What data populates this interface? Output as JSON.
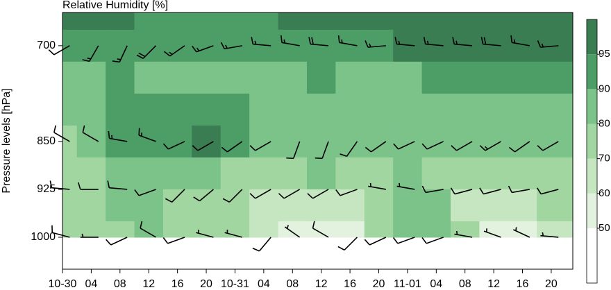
{
  "chart_data": {
    "type": "contour",
    "title": "Relative Humidity [%]",
    "y_label": "Pressure levels [hPa]",
    "xlim": [
      0,
      71
    ],
    "xticks": [
      {
        "value": 0,
        "label": "10-30"
      },
      {
        "value": 4,
        "label": "04"
      },
      {
        "value": 8,
        "label": "08"
      },
      12,
      16,
      20,
      {
        "value": 24,
        "label": "10-31"
      },
      {
        "value": 28,
        "label": "04"
      },
      {
        "value": 32,
        "label": "08"
      },
      {
        "value": 36,
        "label": "12"
      },
      {
        "value": 40,
        "label": "16"
      },
      {
        "value": 44,
        "label": "20"
      },
      {
        "value": 48,
        "label": "11-01"
      },
      {
        "value": 52,
        "label": "04"
      },
      {
        "value": 56,
        "label": "08"
      },
      {
        "value": 60,
        "label": "12"
      },
      {
        "value": 64,
        "label": "16"
      },
      {
        "value": 68,
        "label": "20"
      }
    ],
    "ylim": [
      1050,
      648
    ],
    "yticks": [
      700,
      850,
      925,
      1000
    ],
    "colorbar": {
      "levels": [
        50,
        60,
        70,
        80,
        90,
        95
      ],
      "colors": [
        "#ffffff",
        "#e3f2df",
        "#c6e6c2",
        "#a2d6a0",
        "#7cc38a",
        "#4c9e66",
        "#3b7d53"
      ]
    },
    "rh": {
      "x": [
        0,
        4,
        8,
        12,
        16,
        20,
        24,
        28,
        32,
        36,
        40,
        44,
        48,
        52,
        56,
        60,
        64,
        68
      ],
      "levels": [
        650,
        700,
        750,
        800,
        850,
        900,
        950,
        1000
      ],
      "values": [
        [
          96,
          96,
          95,
          94,
          93,
          92,
          92,
          93,
          95,
          96,
          96,
          97,
          97,
          97,
          97,
          96,
          96,
          96
        ],
        [
          94,
          94,
          91,
          90,
          90,
          90,
          90,
          92,
          94,
          93,
          93,
          94,
          95,
          95,
          96,
          95,
          95,
          95
        ],
        [
          86,
          88,
          92,
          86,
          84,
          84,
          86,
          88,
          82,
          92,
          88,
          86,
          88,
          90,
          92,
          91,
          92,
          92
        ],
        [
          84,
          88,
          92,
          92,
          93,
          94,
          92,
          86,
          80,
          88,
          84,
          84,
          86,
          87,
          88,
          88,
          88,
          88
        ],
        [
          76,
          88,
          92,
          92,
          93,
          96,
          90,
          84,
          82,
          84,
          82,
          82,
          82,
          80,
          82,
          82,
          82,
          82
        ],
        [
          70,
          74,
          82,
          82,
          80,
          80,
          76,
          72,
          78,
          80,
          78,
          76,
          80,
          76,
          70,
          74,
          76,
          78
        ],
        [
          72,
          76,
          80,
          82,
          78,
          76,
          74,
          68,
          64,
          64,
          66,
          72,
          84,
          80,
          66,
          62,
          68,
          76
        ],
        [
          74,
          72,
          76,
          80,
          72,
          70,
          70,
          60,
          56,
          54,
          58,
          70,
          84,
          80,
          70,
          58,
          56,
          66
        ]
      ]
    },
    "wind": {
      "x": [
        1,
        5,
        9,
        13,
        17,
        21,
        25,
        29,
        33,
        37,
        41,
        45,
        49,
        53,
        57,
        61,
        65,
        69
      ],
      "levels": [
        700,
        850,
        925,
        1000
      ],
      "direction": [
        [
          240,
          210,
          205,
          225,
          235,
          250,
          260,
          275,
          280,
          275,
          280,
          265,
          275,
          275,
          275,
          275,
          280,
          265
        ],
        [
          300,
          300,
          280,
          290,
          245,
          240,
          235,
          240,
          200,
          200,
          215,
          235,
          245,
          245,
          240,
          240,
          235,
          240
        ],
        [
          275,
          270,
          275,
          250,
          225,
          230,
          225,
          240,
          240,
          240,
          250,
          280,
          280,
          260,
          255,
          255,
          260,
          255
        ],
        [
          285,
          270,
          245,
          300,
          250,
          285,
          285,
          220,
          305,
          300,
          225,
          245,
          250,
          250,
          280,
          290,
          295,
          275
        ]
      ],
      "speed": [
        [
          10,
          15,
          15,
          20,
          15,
          15,
          15,
          15,
          15,
          20,
          15,
          15,
          15,
          15,
          15,
          20,
          15,
          15
        ],
        [
          10,
          10,
          15,
          15,
          10,
          10,
          10,
          10,
          10,
          10,
          10,
          10,
          10,
          10,
          10,
          15,
          10,
          10
        ],
        [
          10,
          10,
          10,
          10,
          10,
          10,
          10,
          10,
          10,
          10,
          10,
          5,
          5,
          10,
          10,
          10,
          10,
          10
        ],
        [
          10,
          5,
          10,
          10,
          10,
          5,
          5,
          10,
          5,
          10,
          10,
          10,
          10,
          10,
          5,
          5,
          5,
          5
        ]
      ]
    }
  }
}
